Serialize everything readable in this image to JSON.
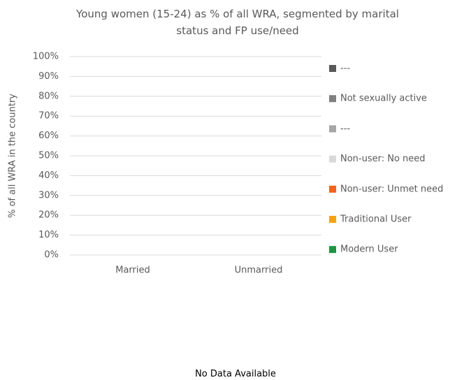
{
  "chart_data": {
    "type": "stacked-bar",
    "title": "Young women (15-24) as % of all WRA, segmented by marital status and FP use/need",
    "ylabel": "% of all WRA in the country",
    "categories": [
      "Married",
      "Unmarried"
    ],
    "series": [
      {
        "name": "Modern User",
        "color": "#1a9641",
        "values": [
          null,
          null
        ]
      },
      {
        "name": "Traditional User",
        "color": "#ffa20a",
        "values": [
          null,
          null
        ]
      },
      {
        "name": "Non-user: Unmet need",
        "color": "#ff6214",
        "values": [
          null,
          null
        ]
      },
      {
        "name": "Non-user: No need",
        "color": "#d9d9d9",
        "values": [
          null,
          null
        ]
      },
      {
        "name": "---",
        "color": "#a6a6a6",
        "values": [
          null,
          null
        ]
      },
      {
        "name": "Not sexually active",
        "color": "#808080",
        "values": [
          null,
          null
        ]
      },
      {
        "name": "---",
        "color": "#595959",
        "values": [
          null,
          null
        ]
      }
    ],
    "ylim": [
      0,
      100
    ],
    "yticks": [
      {
        "value": 0,
        "label": "0%"
      },
      {
        "value": 10,
        "label": "10%"
      },
      {
        "value": 20,
        "label": "20%"
      },
      {
        "value": 30,
        "label": "30%"
      },
      {
        "value": 40,
        "label": "40%"
      },
      {
        "value": 50,
        "label": "50%"
      },
      {
        "value": 60,
        "label": "60%"
      },
      {
        "value": 70,
        "label": "70%"
      },
      {
        "value": 80,
        "label": "80%"
      },
      {
        "value": 90,
        "label": "90%"
      },
      {
        "value": 100,
        "label": "100%"
      }
    ],
    "grid": true,
    "legend": "right",
    "note": "No Data Available"
  }
}
